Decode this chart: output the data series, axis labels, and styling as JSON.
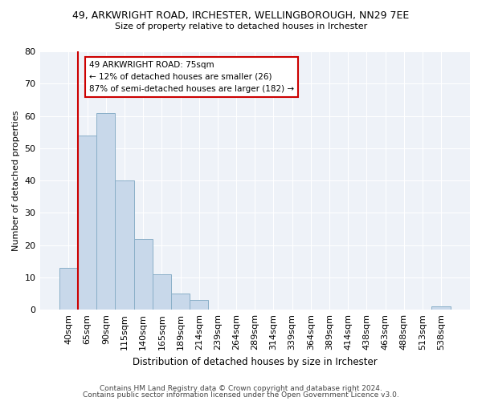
{
  "title1": "49, ARKWRIGHT ROAD, IRCHESTER, WELLINGBOROUGH, NN29 7EE",
  "title2": "Size of property relative to detached houses in Irchester",
  "xlabel": "Distribution of detached houses by size in Irchester",
  "ylabel": "Number of detached properties",
  "bar_labels": [
    "40sqm",
    "65sqm",
    "90sqm",
    "115sqm",
    "140sqm",
    "165sqm",
    "189sqm",
    "214sqm",
    "239sqm",
    "264sqm",
    "289sqm",
    "314sqm",
    "339sqm",
    "364sqm",
    "389sqm",
    "414sqm",
    "438sqm",
    "463sqm",
    "488sqm",
    "513sqm",
    "538sqm"
  ],
  "bar_values": [
    13,
    54,
    61,
    40,
    22,
    11,
    5,
    3,
    0,
    0,
    0,
    0,
    0,
    0,
    0,
    0,
    0,
    0,
    0,
    0,
    1
  ],
  "bar_color": "#c8d8ea",
  "bar_edge_color": "#8aafc8",
  "ylim": [
    0,
    80
  ],
  "yticks": [
    0,
    10,
    20,
    30,
    40,
    50,
    60,
    70,
    80
  ],
  "property_line_x": 0.5,
  "annotation_line1": "49 ARKWRIGHT ROAD: 75sqm",
  "annotation_line2": "← 12% of detached houses are smaller (26)",
  "annotation_line3": "87% of semi-detached houses are larger (182) →",
  "annotation_border_color": "#cc0000",
  "line_color": "#cc0000",
  "footer1": "Contains HM Land Registry data © Crown copyright and database right 2024.",
  "footer2": "Contains public sector information licensed under the Open Government Licence v3.0.",
  "bg_color": "#ffffff",
  "plot_bg_color": "#eef2f8"
}
